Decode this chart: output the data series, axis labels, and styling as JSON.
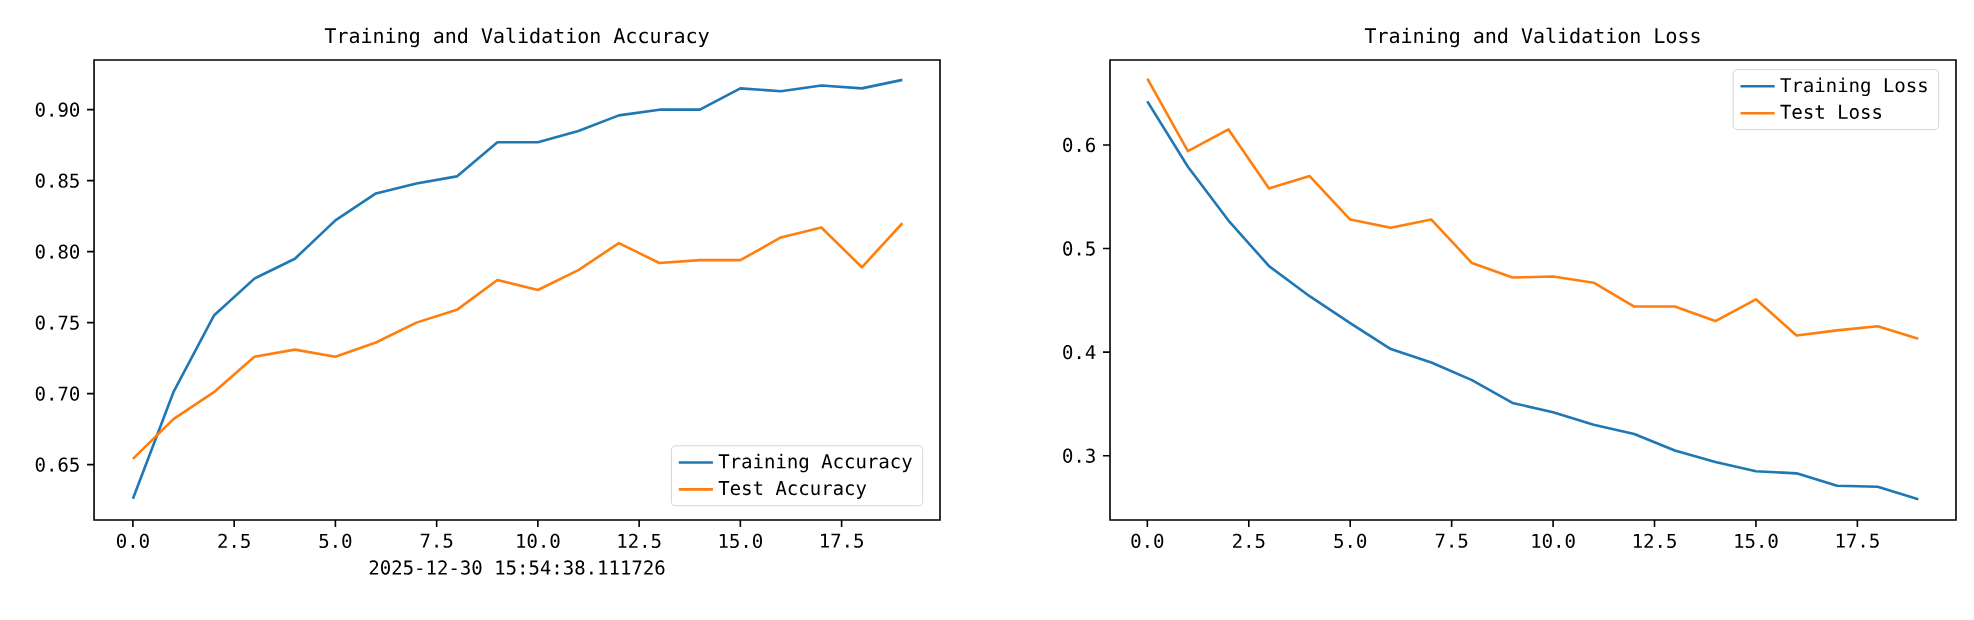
{
  "chart_data": [
    {
      "type": "line",
      "title": "Training and Validation Accuracy",
      "x": [
        0,
        1,
        2,
        3,
        4,
        5,
        6,
        7,
        8,
        9,
        10,
        11,
        12,
        13,
        14,
        15,
        16,
        17,
        18,
        19
      ],
      "series": [
        {
          "name": "Training Accuracy",
          "color": "#1f77b4",
          "values": [
            0.626,
            0.701,
            0.755,
            0.781,
            0.795,
            0.822,
            0.841,
            0.848,
            0.853,
            0.877,
            0.877,
            0.885,
            0.896,
            0.9,
            0.9,
            0.915,
            0.913,
            0.917,
            0.915,
            0.921
          ]
        },
        {
          "name": "Test Accuracy",
          "color": "#ff7f0e",
          "values": [
            0.654,
            0.682,
            0.701,
            0.726,
            0.731,
            0.726,
            0.736,
            0.75,
            0.759,
            0.78,
            0.773,
            0.787,
            0.806,
            0.792,
            0.794,
            0.794,
            0.81,
            0.817,
            0.789,
            0.82
          ]
        }
      ],
      "xlim": [
        -0.96,
        19.93
      ],
      "ylim": [
        0.611,
        0.935
      ],
      "xticks": [
        {
          "value": 0,
          "label": "0.0"
        },
        {
          "value": 2.5,
          "label": "2.5"
        },
        {
          "value": 5,
          "label": "5.0"
        },
        {
          "value": 7.5,
          "label": "7.5"
        },
        {
          "value": 10,
          "label": "10.0"
        },
        {
          "value": 12.5,
          "label": "12.5"
        },
        {
          "value": 15,
          "label": "15.0"
        },
        {
          "value": 17.5,
          "label": "17.5"
        }
      ],
      "yticks": [
        {
          "value": 0.65,
          "label": "0.65"
        },
        {
          "value": 0.7,
          "label": "0.70"
        },
        {
          "value": 0.75,
          "label": "0.75"
        },
        {
          "value": 0.8,
          "label": "0.80"
        },
        {
          "value": 0.85,
          "label": "0.85"
        },
        {
          "value": 0.9,
          "label": "0.90"
        }
      ],
      "legend": "bottom right",
      "annotations": [
        "2025-12-30 15:54:38.111726"
      ]
    },
    {
      "type": "line",
      "title": "Training and Validation Loss",
      "x": [
        0,
        1,
        2,
        3,
        4,
        5,
        6,
        7,
        8,
        9,
        10,
        11,
        12,
        13,
        14,
        15,
        16,
        17,
        18,
        19
      ],
      "series": [
        {
          "name": "Training Loss",
          "color": "#1f77b4",
          "values": [
            0.642,
            0.579,
            0.527,
            0.483,
            0.454,
            0.428,
            0.403,
            0.39,
            0.373,
            0.351,
            0.342,
            0.33,
            0.321,
            0.305,
            0.294,
            0.285,
            0.283,
            0.271,
            0.27,
            0.258
          ]
        },
        {
          "name": "Test Loss",
          "color": "#ff7f0e",
          "values": [
            0.664,
            0.594,
            0.615,
            0.558,
            0.57,
            0.528,
            0.52,
            0.528,
            0.486,
            0.472,
            0.473,
            0.467,
            0.444,
            0.444,
            0.43,
            0.451,
            0.416,
            0.421,
            0.425,
            0.413
          ]
        }
      ],
      "xlim": [
        -0.92,
        19.93
      ],
      "ylim": [
        0.238,
        0.682
      ],
      "xticks": [
        {
          "value": 0,
          "label": "0.0"
        },
        {
          "value": 2.5,
          "label": "2.5"
        },
        {
          "value": 5,
          "label": "5.0"
        },
        {
          "value": 7.5,
          "label": "7.5"
        },
        {
          "value": 10,
          "label": "10.0"
        },
        {
          "value": 12.5,
          "label": "12.5"
        },
        {
          "value": 15,
          "label": "15.0"
        },
        {
          "value": 17.5,
          "label": "17.5"
        }
      ],
      "yticks": [
        0.3,
        0.4,
        0.5,
        0.6
      ],
      "legend": "top right"
    }
  ]
}
